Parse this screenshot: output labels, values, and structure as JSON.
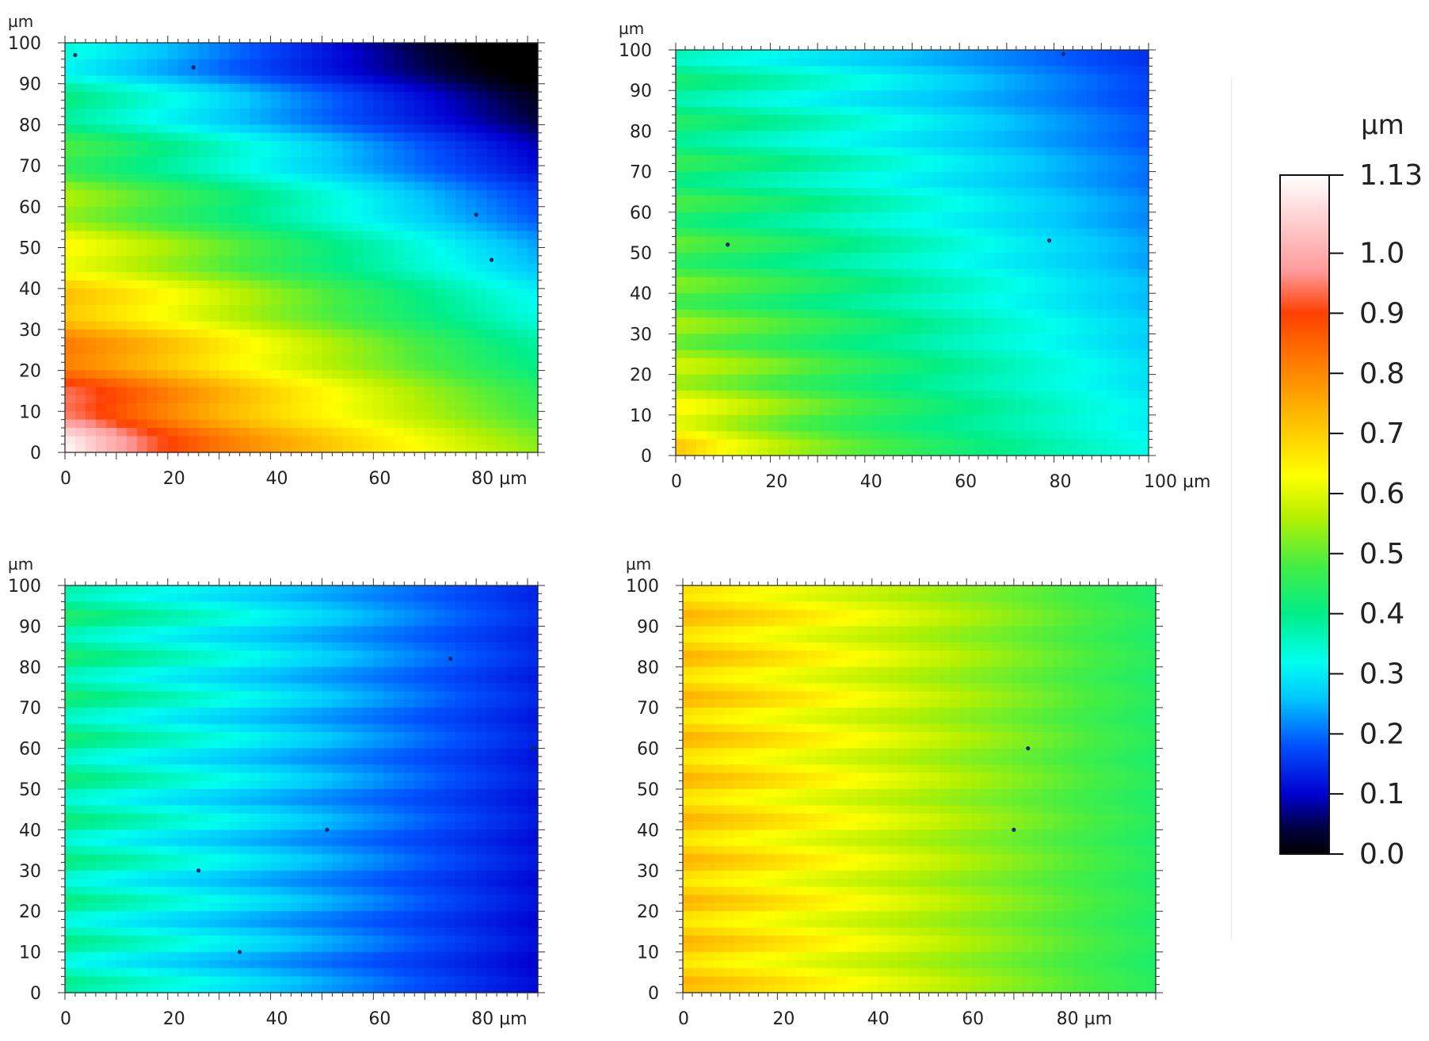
{
  "chart_data": [
    {
      "type": "heatmap",
      "unit_label": "µm",
      "xlim": [
        0,
        92
      ],
      "ylim": [
        0,
        100
      ],
      "x_ticks": [
        "0",
        "20",
        "40",
        "60",
        "80 µm"
      ],
      "y_ticks": [
        "0",
        "10",
        "20",
        "30",
        "40",
        "50",
        "60",
        "70",
        "80",
        "90",
        "100"
      ],
      "surface": {
        "base": 0.9,
        "gx": -0.004,
        "gy": -0.006,
        "stripe_amp": 0.03,
        "stripe_period": 12,
        "corner_peak": 0.22
      },
      "defects": [
        [
          2,
          97
        ],
        [
          25,
          94
        ],
        [
          80,
          58
        ],
        [
          83,
          47
        ]
      ]
    },
    {
      "type": "heatmap",
      "unit_label": "µm",
      "xlim": [
        0,
        100
      ],
      "ylim": [
        0,
        100
      ],
      "x_ticks": [
        "0",
        "20",
        "40",
        "60",
        "80",
        "100 µm"
      ],
      "y_ticks": [
        "0",
        "10",
        "20",
        "30",
        "40",
        "50",
        "60",
        "70",
        "80",
        "90",
        "100"
      ],
      "surface": {
        "base": 0.55,
        "gx": -0.0023,
        "gy": -0.0017,
        "stripe_amp": 0.035,
        "stripe_period": 10,
        "corner_peak": 0.15
      },
      "defects": [
        [
          82,
          99
        ],
        [
          79,
          53
        ],
        [
          11,
          52
        ]
      ]
    },
    {
      "type": "heatmap",
      "unit_label": "µm",
      "xlim": [
        0,
        92
      ],
      "ylim": [
        0,
        100
      ],
      "x_ticks": [
        "0",
        "20",
        "40",
        "60",
        "80 µm"
      ],
      "y_ticks": [
        "0",
        "10",
        "20",
        "30",
        "40",
        "50",
        "60",
        "70",
        "80",
        "90",
        "100"
      ],
      "surface": {
        "base": 0.36,
        "gx": -0.0028,
        "gy": 0.0004,
        "stripe_amp": 0.04,
        "stripe_period": 10,
        "corner_peak": 0.0
      },
      "defects": [
        [
          75,
          82
        ],
        [
          51,
          40
        ],
        [
          34,
          10
        ],
        [
          26,
          30
        ],
        [
          91,
          60
        ]
      ]
    },
    {
      "type": "heatmap",
      "unit_label": "µm",
      "xlim": [
        0,
        100
      ],
      "ylim": [
        0,
        100
      ],
      "x_ticks": [
        "0",
        "20",
        "40",
        "60",
        "80 µm"
      ],
      "y_ticks": [
        "0",
        "10",
        "20",
        "30",
        "40",
        "50",
        "60",
        "70",
        "80",
        "90",
        "100"
      ],
      "surface": {
        "base": 0.7,
        "gx": -0.0026,
        "gy": 0.0,
        "stripe_amp": 0.04,
        "stripe_period": 10,
        "corner_peak": 0.0
      },
      "defects": [
        [
          73,
          60
        ],
        [
          70,
          40
        ]
      ]
    }
  ],
  "colorbar": {
    "unit": "µm",
    "ticks": [
      "1.13",
      "1.0",
      "0.9",
      "0.8",
      "0.7",
      "0.6",
      "0.5",
      "0.4",
      "0.3",
      "0.2",
      "0.1",
      "0.0"
    ],
    "range": [
      0.0,
      1.13
    ],
    "stops": [
      [
        0.0,
        "#000000"
      ],
      [
        0.04,
        "#00003a"
      ],
      [
        0.1,
        "#0000d0"
      ],
      [
        0.18,
        "#0050ff"
      ],
      [
        0.26,
        "#00c8ff"
      ],
      [
        0.32,
        "#00ffee"
      ],
      [
        0.4,
        "#00ee88"
      ],
      [
        0.48,
        "#44ee44"
      ],
      [
        0.56,
        "#b4f000"
      ],
      [
        0.63,
        "#ffff00"
      ],
      [
        0.72,
        "#ffc000"
      ],
      [
        0.82,
        "#ff7a00"
      ],
      [
        0.9,
        "#ff4000"
      ],
      [
        0.97,
        "#ff9a9a"
      ],
      [
        1.13,
        "#ffffff"
      ]
    ]
  }
}
